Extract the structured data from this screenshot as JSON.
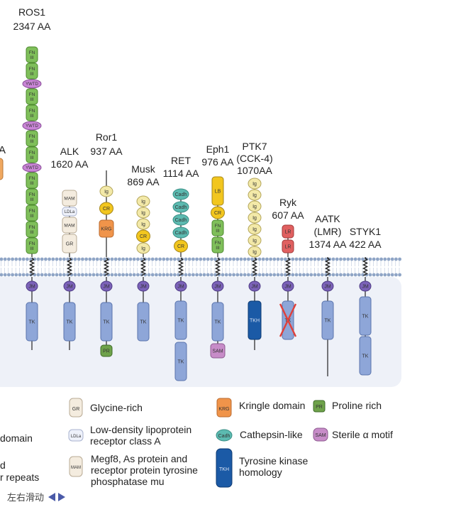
{
  "proteins": [
    {
      "id": "ros1",
      "name": "ROS1",
      "length": "2347 AA",
      "domains": [
        "FN III",
        "FN III",
        "YWTD",
        "FN III",
        "FN III",
        "YWTD",
        "FN III",
        "FN III",
        "YWTD",
        "FN III",
        "FN III",
        "FN III",
        "FN III",
        "FN III"
      ],
      "intra": [
        "JM",
        "TK"
      ]
    },
    {
      "id": "alk",
      "name": "ALK",
      "length": "1620 AA",
      "domains": [
        "MAM",
        "LDLa",
        "MAM",
        "GR"
      ],
      "intra": [
        "JM",
        "TK"
      ]
    },
    {
      "id": "ror1",
      "name": "Ror1",
      "length": "937 AA",
      "domains": [
        "Ig",
        "CR",
        "KRG"
      ],
      "intra": [
        "JM",
        "TK",
        "PR"
      ]
    },
    {
      "id": "musk",
      "name": "Musk",
      "length": "869 AA",
      "domains": [
        "Ig",
        "Ig",
        "Ig",
        "CR",
        "Ig"
      ],
      "intra": [
        "JM",
        "TK"
      ]
    },
    {
      "id": "ret",
      "name": "RET",
      "length": "1114 AA",
      "domains": [
        "Cadh",
        "Cadh",
        "Cadh",
        "Cadh",
        "CR"
      ],
      "intra": [
        "JM",
        "TK",
        "TK"
      ]
    },
    {
      "id": "eph1",
      "name": "Eph1",
      "length": "976 AA",
      "domains": [
        "LB",
        "CR",
        "FN III",
        "FN III"
      ],
      "intra": [
        "JM",
        "TK",
        "SAM"
      ]
    },
    {
      "id": "ptk7",
      "name": "PTK7",
      "name2": "(CCK-4)",
      "length": "1070AA",
      "domains": [
        "Ig",
        "Ig",
        "Ig",
        "Ig",
        "Ig",
        "Ig",
        "Ig"
      ],
      "intra": [
        "JM",
        "TKH"
      ]
    },
    {
      "id": "ryk",
      "name": "Ryk",
      "length": "607 AA",
      "domains": [
        "LR",
        "LR"
      ],
      "intra": [
        "JM",
        "TK"
      ]
    },
    {
      "id": "aatk",
      "name": "AATK",
      "name2": "(LMR)",
      "length": "1374 AA",
      "domains": [],
      "intra": [
        "JM",
        "TK"
      ]
    },
    {
      "id": "styk1",
      "name": "STYK1",
      "length": "422 AA",
      "domains": [],
      "intra": [
        "JM",
        "TK",
        "TK"
      ]
    }
  ],
  "partial_left_label": "A",
  "legend": {
    "partial_col": [
      "domain",
      "d",
      "r repeats"
    ],
    "gr": {
      "abbr": "GR",
      "label": "Glycine-rich"
    },
    "ldla": {
      "abbr": "LDLa",
      "label1": "Low-density lipoprotein",
      "label2": "receptor class A"
    },
    "mam": {
      "abbr": "MAM",
      "label1": "Megf8, As protein and",
      "label2": "receptor protein tyrosine",
      "label3": "phosphatase mu"
    },
    "krg": {
      "abbr": "KRG",
      "label": "Kringle domain"
    },
    "pr": {
      "abbr": "PR",
      "label": "Proline rich"
    },
    "cadh": {
      "abbr": "Cadh",
      "label": "Cathepsin-like"
    },
    "sam": {
      "abbr": "SAM",
      "label": "Sterile α motif"
    },
    "tkh": {
      "abbr": "TKH",
      "label1": "Tyrosine kinase",
      "label2": "homology"
    }
  },
  "scroll_hint": "左右滑动",
  "colors": {
    "fn3": "#7fbf5a",
    "ywtd": "#c985d6",
    "jm": "#7b62b8",
    "tk": "#8ea6d8",
    "ig": "#f3e9a8",
    "cr": "#f2c61f",
    "krg": "#f0944a",
    "cadh": "#5cbab0",
    "lb": "#f2c61f",
    "lr": "#e06060",
    "mam": "#f4ecdf",
    "gr": "#f4ecdf",
    "ldla": "#eef1fa",
    "pr": "#6ea24a",
    "sam": "#c78cc8",
    "tkh": "#1b5aa6",
    "membrane": "#8fa5c6",
    "cytoplasm": "#eef1f8"
  }
}
